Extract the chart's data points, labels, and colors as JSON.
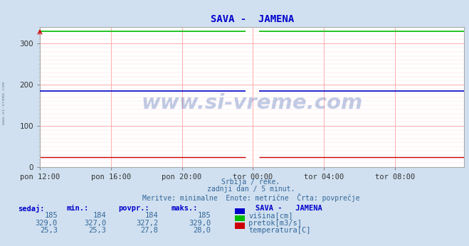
{
  "title": "SAVA -  JAMENA",
  "title_color": "#0000cc",
  "bg_color": "#d0e0f0",
  "plot_bg_color": "#ffffff",
  "grid_color_major": "#ffaaaa",
  "grid_color_minor": "#ffdddd",
  "watermark": "www.si-vreme.com",
  "subtitle_lines": [
    "Srbija / reke.",
    "zadnji dan / 5 minut.",
    "Meritve: minimalne  Enote: metrične  Črta: povprečje"
  ],
  "xlabel_ticks": [
    "pon 12:00",
    "pon 16:00",
    "pon 20:00",
    "tor 00:00",
    "tor 04:00",
    "tor 08:00"
  ],
  "ylim": [
    0,
    340
  ],
  "yticks": [
    0,
    100,
    200,
    300
  ],
  "n_points": 288,
  "visina_value": 185,
  "visina_min": 184,
  "visina_povpr": 184,
  "visina_maks": 185,
  "pretok_value": 329.0,
  "pretok_min": 327.0,
  "pretok_povpr": 327.2,
  "pretok_maks": 329.0,
  "temp_value": 25.3,
  "temp_min": 25.3,
  "temp_povpr": 27.8,
  "temp_maks": 28.0,
  "color_visina": "#0000cc",
  "color_pretok": "#00bb00",
  "color_temp": "#cc0000",
  "legend_title": "SAVA -   JAMENA",
  "table_headers": [
    "sedaj:",
    "min.:",
    "povpr.:",
    "maks.:"
  ],
  "sidebar_text": "www.si-vreme.com",
  "sidebar_color": "#556688"
}
